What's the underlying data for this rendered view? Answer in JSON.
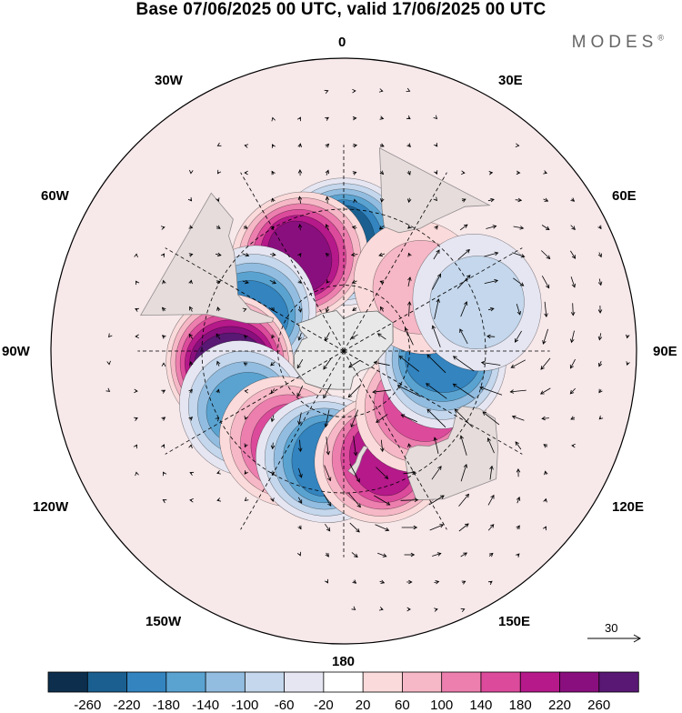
{
  "title": "Base 07/06/2025 00 UTC, valid 17/06/2025 00 UTC",
  "brand": "MODES",
  "brand_mark": "®",
  "lon_labels": {
    "n0": "0",
    "w30": "30W",
    "e30": "30E",
    "w60": "60W",
    "e60": "60E",
    "w90": "90W",
    "e90": "90E",
    "w120": "120W",
    "e120": "120E",
    "w150": "150W",
    "e150": "150E",
    "s180": "180"
  },
  "reference_vector": {
    "value": "30"
  },
  "map": {
    "projection": "south polar stereographic",
    "land_color": "#e8e8e8",
    "coast_color": "#666666",
    "gridline_style": "dashed",
    "anomalies": [
      {
        "lon_deg": 0,
        "lat_deg": -42,
        "value": -220
      },
      {
        "lon_deg": -25,
        "lat_deg": -44,
        "value": 250
      },
      {
        "lon_deg": -68,
        "lat_deg": -46,
        "value": -190
      },
      {
        "lon_deg": -96,
        "lat_deg": -40,
        "value": 265
      },
      {
        "lon_deg": -120,
        "lat_deg": -40,
        "value": -150
      },
      {
        "lon_deg": -148,
        "lat_deg": -43,
        "value": 150
      },
      {
        "lon_deg": -170,
        "lat_deg": -42,
        "value": -200
      },
      {
        "lon_deg": 160,
        "lat_deg": -40,
        "value": 180
      },
      {
        "lon_deg": 125,
        "lat_deg": -48,
        "value": 175
      },
      {
        "lon_deg": 95,
        "lat_deg": -46,
        "value": -180
      },
      {
        "lon_deg": 50,
        "lat_deg": -46,
        "value": 80
      },
      {
        "lon_deg": 70,
        "lat_deg": -30,
        "value": -60
      }
    ]
  },
  "colorbar": {
    "colors": [
      "#0d2f4d",
      "#1a5f8f",
      "#3384bf",
      "#5aa3d1",
      "#92bde0",
      "#c4d7ec",
      "#e6e6f2",
      "#ffffff",
      "#fadada",
      "#f6b8c6",
      "#ec7fae",
      "#dc4a9b",
      "#b5198a",
      "#8a0f7e",
      "#581873"
    ],
    "ticks": [
      "-260",
      "-220",
      "-180",
      "-140",
      "-100",
      "-60",
      "-20",
      "20",
      "60",
      "100",
      "140",
      "180",
      "220",
      "260"
    ]
  }
}
